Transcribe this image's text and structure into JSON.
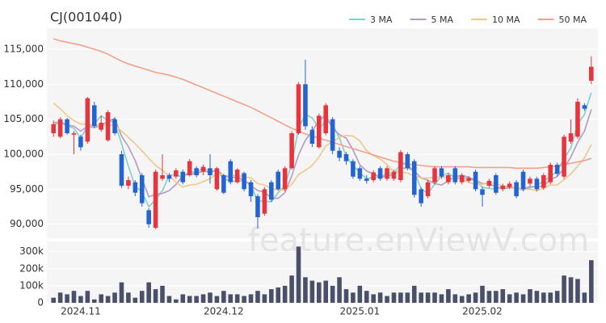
{
  "chart_data": [
    {
      "type": "candlestick",
      "title": "CJ(001040)",
      "watermark": "feature.enViewV.com",
      "up_color": "#e8343c",
      "down_color": "#2364d2",
      "ylim": [
        88000,
        118000
      ],
      "yticks": [
        {
          "value": 90000,
          "label": "90,000"
        },
        {
          "value": 95000,
          "label": "95,000"
        },
        {
          "value": 100000,
          "label": "100,000"
        },
        {
          "value": 105000,
          "label": "105,000"
        },
        {
          "value": 110000,
          "label": "110,000"
        },
        {
          "value": 115000,
          "label": "115,000"
        }
      ],
      "open": [
        103000,
        102500,
        105000,
        102800,
        102500,
        101800,
        107000,
        103500,
        102000,
        105000,
        100000,
        95500,
        96000,
        97000,
        92000,
        89500,
        96500,
        97000,
        96800,
        97500,
        97000,
        98000,
        97500,
        98000,
        95000,
        97000,
        99000,
        96000,
        97300,
        96000,
        94000,
        91500,
        96000,
        97500,
        95000,
        98000,
        103000,
        110000,
        103500,
        101000,
        103000,
        105000,
        100500,
        100000,
        99000,
        98000,
        96500,
        96300,
        98000,
        96500,
        96500,
        96300,
        100000,
        99000,
        95000,
        94000,
        96000,
        98000,
        96000,
        98000,
        96000,
        96200,
        97500,
        95000,
        95500,
        97000,
        95000,
        95300,
        96000,
        97500,
        95800,
        96500,
        95200,
        96000,
        98500,
        96800,
        101800,
        102500,
        107000,
        110500
      ],
      "high": [
        104800,
        105300,
        105200,
        103300,
        102800,
        108200,
        107500,
        105500,
        106300,
        105300,
        100500,
        96800,
        96300,
        97300,
        92300,
        97800,
        100000,
        97300,
        98000,
        97800,
        99300,
        98300,
        98500,
        100000,
        98200,
        97200,
        99300,
        98000,
        97500,
        96300,
        94300,
        95300,
        96300,
        97800,
        98300,
        103300,
        110300,
        113500,
        104000,
        105800,
        107300,
        105300,
        101000,
        100300,
        99300,
        98300,
        97000,
        97700,
        98300,
        98300,
        97800,
        100600,
        100300,
        99300,
        95300,
        96300,
        98300,
        98300,
        97300,
        98300,
        97300,
        96900,
        97800,
        95300,
        96500,
        97300,
        95800,
        96100,
        96300,
        97800,
        96800,
        96800,
        97300,
        98800,
        98800,
        102800,
        105000,
        108000,
        107300,
        114000
      ],
      "low": [
        102500,
        102300,
        102800,
        100000,
        100500,
        101500,
        103800,
        103200,
        101800,
        102700,
        95200,
        95000,
        94000,
        92500,
        89500,
        89300,
        96200,
        96000,
        96500,
        95700,
        96800,
        96700,
        97000,
        95800,
        94800,
        94300,
        95700,
        95800,
        94700,
        93200,
        89400,
        91200,
        93200,
        94800,
        94700,
        97800,
        102800,
        103500,
        101000,
        100800,
        102700,
        100000,
        99000,
        98500,
        96500,
        96200,
        95800,
        96000,
        96200,
        96200,
        96200,
        96000,
        97700,
        93800,
        92500,
        93700,
        95700,
        96500,
        95700,
        95700,
        95700,
        95900,
        94700,
        92500,
        95200,
        94200,
        94700,
        95000,
        93700,
        94700,
        95500,
        94700,
        94900,
        95700,
        96900,
        96500,
        101500,
        102200,
        106200,
        110000
      ],
      "close": [
        104300,
        105000,
        103000,
        103000,
        101000,
        108000,
        104000,
        104500,
        106000,
        103000,
        95500,
        96300,
        94500,
        93000,
        90000,
        97500,
        97000,
        96500,
        97700,
        96000,
        99000,
        97000,
        98200,
        97000,
        98000,
        94500,
        96000,
        97800,
        95000,
        94000,
        91000,
        95000,
        93500,
        95000,
        98000,
        103000,
        110000,
        104000,
        101500,
        105500,
        107000,
        100500,
        99500,
        99000,
        96800,
        96500,
        96200,
        97400,
        96500,
        98000,
        97500,
        100300,
        98000,
        94200,
        93000,
        96000,
        98000,
        96800,
        97000,
        96000,
        97000,
        96600,
        95000,
        94200,
        96200,
        94500,
        95500,
        95800,
        94000,
        95000,
        96500,
        95000,
        97000,
        98500,
        97200,
        102500,
        103000,
        107500,
        106500,
        112500
      ],
      "series": [
        {
          "name": "3 MA",
          "color": "#7fd1cc",
          "values": [
            104200,
            104500,
            104100,
            103700,
            102300,
            104000,
            104300,
            105500,
            104800,
            104500,
            101500,
            98300,
            95400,
            94600,
            92500,
            93500,
            94800,
            97000,
            97100,
            96700,
            97600,
            97300,
            98100,
            97400,
            97700,
            96500,
            96200,
            96100,
            96300,
            95600,
            93300,
            93300,
            93200,
            94500,
            95500,
            98700,
            103700,
            105700,
            105200,
            103700,
            104700,
            104300,
            102300,
            99700,
            98400,
            97400,
            96500,
            96700,
            96700,
            97300,
            97300,
            98600,
            98600,
            97500,
            95100,
            94400,
            95700,
            96900,
            97300,
            96600,
            96700,
            96500,
            96200,
            95300,
            95100,
            95000,
            95400,
            95300,
            95100,
            94900,
            95200,
            95500,
            96200,
            96800,
            97600,
            99400,
            100900,
            104300,
            105700,
            108800
          ]
        },
        {
          "name": "5 MA",
          "color": "#b39ac7",
          "values": [
            104500,
            104600,
            104200,
            104000,
            103300,
            104000,
            103800,
            104100,
            104700,
            105100,
            102600,
            101100,
            99100,
            96500,
            93900,
            94300,
            94400,
            94800,
            95700,
            96900,
            97200,
            97200,
            97600,
            97400,
            97800,
            96900,
            96700,
            96700,
            96300,
            95500,
            94800,
            94600,
            93700,
            93700,
            94500,
            96900,
            99900,
            102000,
            103300,
            104800,
            105600,
            103700,
            102800,
            102300,
            100600,
            98500,
            97600,
            97200,
            96700,
            96900,
            97100,
            97900,
            98100,
            97600,
            96600,
            96300,
            95800,
            95600,
            96200,
            96800,
            97000,
            96700,
            96300,
            95800,
            95800,
            95300,
            95100,
            95200,
            95200,
            95000,
            95400,
            95300,
            95500,
            96400,
            96800,
            98000,
            99600,
            101700,
            103300,
            106400
          ]
        },
        {
          "name": "10 MA",
          "color": "#f0c88a",
          "values": [
            107300,
            106500,
            105500,
            104800,
            104300,
            104300,
            104200,
            104100,
            104100,
            104200,
            103300,
            102400,
            101500,
            100500,
            99400,
            98400,
            97700,
            96900,
            96000,
            95300,
            95600,
            95700,
            96100,
            96500,
            97300,
            97000,
            96900,
            97000,
            96800,
            96600,
            95800,
            95600,
            95100,
            94900,
            94900,
            95700,
            97100,
            97700,
            98400,
            99600,
            101200,
            101800,
            102400,
            102700,
            102600,
            101900,
            100500,
            99800,
            99300,
            98500,
            97500,
            97500,
            97300,
            96900,
            96600,
            96600,
            96700,
            96700,
            96700,
            96500,
            96400,
            96000,
            95700,
            95700,
            96000,
            95800,
            95500,
            95400,
            95100,
            95000,
            95000,
            94800,
            95200,
            95600,
            95600,
            96400,
            97200,
            98300,
            99500,
            101400
          ]
        },
        {
          "name": "50 MA",
          "color": "#f2a08c",
          "values": [
            116500,
            116200,
            116000,
            115800,
            115600,
            115300,
            115000,
            114700,
            114300,
            113800,
            113300,
            112900,
            112600,
            112300,
            112000,
            111700,
            111500,
            111300,
            111000,
            110700,
            110300,
            109900,
            109500,
            109100,
            108700,
            108300,
            107900,
            107500,
            107100,
            106700,
            106200,
            105700,
            105200,
            104700,
            104200,
            103700,
            103300,
            102900,
            102600,
            102300,
            102000,
            101700,
            101400,
            101100,
            100800,
            100500,
            100200,
            99900,
            99600,
            99300,
            99000,
            98800,
            98600,
            98500,
            98400,
            98300,
            98200,
            98200,
            98200,
            98200,
            98200,
            98200,
            98100,
            98100,
            98100,
            98100,
            98100,
            98100,
            98000,
            98000,
            98000,
            98000,
            98100,
            98200,
            98300,
            98500,
            98700,
            98900,
            99100,
            99400
          ]
        }
      ]
    },
    {
      "type": "bar",
      "color": "#4a4f6a",
      "categories": [
        null,
        null,
        null,
        null,
        "2024.11",
        null,
        null,
        null,
        null,
        null,
        null,
        null,
        null,
        null,
        null,
        null,
        null,
        null,
        null,
        null,
        null,
        null,
        null,
        null,
        null,
        "2024.12",
        null,
        null,
        null,
        null,
        null,
        null,
        null,
        null,
        null,
        null,
        null,
        null,
        null,
        null,
        null,
        null,
        null,
        null,
        null,
        "2025.01",
        null,
        null,
        null,
        null,
        null,
        null,
        null,
        null,
        null,
        null,
        null,
        null,
        null,
        null,
        null,
        null,
        null,
        "2025.02",
        null,
        null,
        null,
        null,
        null,
        null,
        null,
        null,
        null,
        null,
        null,
        null,
        null,
        null,
        null,
        null
      ],
      "values": [
        30000,
        60000,
        50000,
        70000,
        40000,
        70000,
        20000,
        50000,
        40000,
        60000,
        120000,
        60000,
        30000,
        70000,
        120000,
        80000,
        100000,
        40000,
        20000,
        50000,
        40000,
        40000,
        50000,
        60000,
        40000,
        70000,
        50000,
        50000,
        40000,
        50000,
        70000,
        50000,
        80000,
        90000,
        100000,
        160000,
        330000,
        150000,
        130000,
        120000,
        130000,
        100000,
        150000,
        80000,
        60000,
        100000,
        70000,
        50000,
        60000,
        40000,
        60000,
        60000,
        60000,
        100000,
        60000,
        60000,
        60000,
        50000,
        80000,
        50000,
        40000,
        50000,
        60000,
        100000,
        70000,
        70000,
        80000,
        50000,
        60000,
        50000,
        80000,
        70000,
        60000,
        60000,
        70000,
        160000,
        150000,
        140000,
        60000,
        250000
      ],
      "ylim": [
        0,
        360000
      ],
      "yticks": [
        0,
        {
          "value": 100000,
          "label": "100k"
        },
        {
          "value": 200000,
          "label": "200k"
        },
        {
          "value": 300000,
          "label": "300k"
        }
      ]
    }
  ]
}
